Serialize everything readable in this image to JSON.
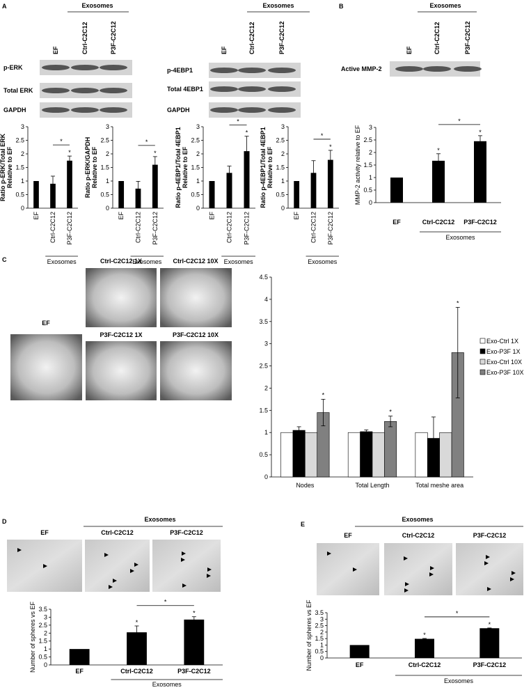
{
  "panel_labels": [
    "A",
    "B",
    "C",
    "D",
    "E"
  ],
  "blots": [
    {
      "group": "Exosomes",
      "lanes": [
        "EF",
        "Ctrl-C2C12",
        "P3F-C2C12"
      ],
      "rows": [
        "p-ERK",
        "Total ERK",
        "GAPDH"
      ]
    },
    {
      "group": "Exosomes",
      "lanes": [
        "EF",
        "Ctrl-C2C12",
        "P3F-C2C12"
      ],
      "rows": [
        "p-4EBP1",
        "Total 4EBP1",
        "GAPDH"
      ]
    },
    {
      "group": "Exosomes",
      "lanes": [
        "EF",
        "Ctrl-C2C12",
        "P3F-C2C12"
      ],
      "rows": [
        "Active MMP-2"
      ]
    }
  ],
  "micrographs": [
    {
      "labels": [
        "EF",
        "Ctrl-C2C12 1X",
        "Ctrl-C2C12 10X",
        "P3F-C2C12 1X",
        "P3F-C2C12 10X"
      ]
    },
    {
      "group": "Exosomes",
      "labels": [
        "EF",
        "Ctrl-C2C12",
        "P3F-C2C12"
      ]
    },
    {
      "group": "Exosomes",
      "labels": [
        "EF",
        "Ctrl-C2C12",
        "P3F-C2C12"
      ]
    }
  ],
  "chart_data": [
    {
      "type": "bar",
      "ylabel": [
        "Ratio p-ERK/Total ERK",
        "Relative to EF"
      ],
      "categories": [
        "EF",
        "Ctrl-C2C12",
        "P3F-C2C12"
      ],
      "values": [
        1,
        0.9,
        1.75
      ],
      "errors": [
        0,
        0.28,
        0.17
      ],
      "color": "#000000",
      "ylim": [
        0,
        3
      ],
      "yticks": [
        0,
        0.5,
        1,
        1.5,
        2,
        2.5,
        3
      ],
      "group_label": "Exosomes",
      "stars": [
        null,
        null,
        "*"
      ],
      "bracket": {
        "text": "*",
        "from": 1,
        "to": 2
      }
    },
    {
      "type": "bar",
      "ylabel": [
        "Ratio p-ERK/GAPDH",
        "Relative to EF"
      ],
      "categories": [
        "EF",
        "Ctrl-C2C12",
        "P3F-C2C12"
      ],
      "values": [
        1,
        0.72,
        1.6
      ],
      "errors": [
        0,
        0.27,
        0.3
      ],
      "color": "#000000",
      "ylim": [
        0,
        3
      ],
      "yticks": [
        0,
        0.5,
        1,
        1.5,
        2,
        2.5,
        3
      ],
      "group_label": "Exosomes",
      "stars": [
        null,
        null,
        "*"
      ],
      "bracket": {
        "text": "*",
        "from": 1,
        "to": 2
      }
    },
    {
      "type": "bar",
      "ylabel": [
        "Ratio p-4EBP1/Total 4EBP1",
        "Relative to EF"
      ],
      "categories": [
        "EF",
        "Ctrl-C2C12",
        "P3F-C2C12"
      ],
      "values": [
        1,
        1.3,
        2.1
      ],
      "errors": [
        0,
        0.25,
        0.55
      ],
      "color": "#000000",
      "ylim": [
        0,
        3
      ],
      "yticks": [
        0,
        0.5,
        1,
        1.5,
        2,
        2.5,
        3
      ],
      "group_label": "Exosomes",
      "stars": [
        null,
        null,
        "*"
      ],
      "bracket": {
        "text": "*",
        "from": 1,
        "to": 2
      }
    },
    {
      "type": "bar",
      "ylabel": [
        "Ratio p-4EBP1/Total 4EBP1",
        "Relative to EF"
      ],
      "categories": [
        "EF",
        "Ctrl-C2C12",
        "P3F-C2C12"
      ],
      "values": [
        1,
        1.3,
        1.78
      ],
      "errors": [
        0,
        0.45,
        0.35
      ],
      "color": "#000000",
      "ylim": [
        0,
        3
      ],
      "yticks": [
        0,
        0.5,
        1,
        1.5,
        2,
        2.5,
        3
      ],
      "group_label": "Exosomes",
      "stars": [
        null,
        null,
        "*"
      ],
      "bracket": {
        "text": "*",
        "from": 1,
        "to": 2
      }
    },
    {
      "type": "bar",
      "ylabel": [
        "MMP-2 activity relative to EF"
      ],
      "categories": [
        "EF",
        "Ctrl-C2C12",
        "P3F-C2C12"
      ],
      "values": [
        1,
        1.67,
        2.45
      ],
      "errors": [
        0,
        0.28,
        0.22
      ],
      "color": "#000000",
      "ylim": [
        0,
        3
      ],
      "yticks": [
        0,
        0.5,
        1,
        1.5,
        2,
        2.5,
        3
      ],
      "group_label": "Exosomes",
      "stars": [
        null,
        "*",
        "*"
      ],
      "bracket": {
        "text": "*",
        "from": 1,
        "to": 2
      }
    },
    {
      "type": "grouped_bar",
      "categories": [
        "Nodes",
        "Total Length",
        "Total meshe area"
      ],
      "ylim": [
        0,
        4.5
      ],
      "yticks": [
        0,
        0.5,
        1,
        1.5,
        2,
        2.5,
        3,
        3.5,
        4,
        4.5
      ],
      "legend": "right",
      "series": [
        {
          "name": "Exo-Ctrl 1X",
          "color": "#ffffff",
          "values": [
            1,
            1,
            1
          ]
        },
        {
          "name": "Exo-P3F 1X",
          "color": "#000000",
          "values": [
            1.05,
            1.02,
            0.87
          ],
          "errors": [
            0.08,
            0.04,
            0.48
          ]
        },
        {
          "name": "Exo-Ctrl 10X",
          "color": "#d9d9d9",
          "values": [
            1,
            1,
            1
          ]
        },
        {
          "name": "Exo-P3F 10X",
          "color": "#808080",
          "values": [
            1.45,
            1.25,
            2.8
          ],
          "errors": [
            0.3,
            0.12,
            1.02
          ],
          "stars": [
            "*",
            "*",
            "*"
          ]
        }
      ]
    },
    {
      "type": "bar",
      "ylabel": [
        "Number of spheres vs EF"
      ],
      "categories": [
        "EF",
        "Ctrl-C2C12",
        "P3F-C2C12"
      ],
      "values": [
        1,
        2.05,
        2.85
      ],
      "errors": [
        0,
        0.4,
        0.18
      ],
      "color": "#000000",
      "ylim": [
        0,
        3.5
      ],
      "yticks": [
        0,
        0.5,
        1,
        1.5,
        2,
        2.5,
        3,
        3.5
      ],
      "group_label": "Exosomes",
      "stars": [
        null,
        "*",
        "*"
      ],
      "bracket": {
        "text": "*",
        "from": 1,
        "to": 2
      }
    },
    {
      "type": "bar",
      "ylabel": [
        "Number of spheres vs EF"
      ],
      "categories": [
        "EF",
        "Ctrl-C2C12",
        "P3F-C2C12"
      ],
      "values": [
        1,
        1.48,
        2.3
      ],
      "errors": [
        0,
        0.03,
        0.02
      ],
      "color": "#000000",
      "ylim": [
        0,
        3.5
      ],
      "yticks": [
        0,
        0.5,
        1,
        1.5,
        2,
        2.5,
        3,
        3.5
      ],
      "group_label": "Exosomes",
      "stars": [
        null,
        "*",
        "*"
      ],
      "bracket": {
        "text": "*",
        "from": 1,
        "to": 2
      }
    }
  ]
}
